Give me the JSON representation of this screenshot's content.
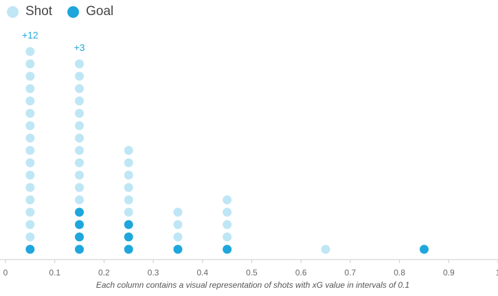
{
  "chart_data": {
    "type": "scatter",
    "description_style": "dot-stack histogram",
    "xlim": [
      0,
      1
    ],
    "x_ticks": [
      "0",
      "0.1",
      "0.2",
      "0.3",
      "0.4",
      "0.5",
      "0.6",
      "0.7",
      "0.8",
      "0.9",
      "1"
    ],
    "max_dots_shown": 17,
    "series": [
      {
        "name": "Shot",
        "color": "#bfe6f5"
      },
      {
        "name": "Goal",
        "color": "#1fa6dc"
      }
    ],
    "bins": [
      {
        "x": 0.05,
        "shots": 28,
        "goals": 1,
        "overflow_label": "+12"
      },
      {
        "x": 0.15,
        "shots": 16,
        "goals": 4,
        "overflow_label": "+3"
      },
      {
        "x": 0.25,
        "shots": 9,
        "goals": 3,
        "overflow_label": ""
      },
      {
        "x": 0.35,
        "shots": 4,
        "goals": 1,
        "overflow_label": ""
      },
      {
        "x": 0.45,
        "shots": 5,
        "goals": 1,
        "overflow_label": ""
      },
      {
        "x": 0.65,
        "shots": 1,
        "goals": 0,
        "overflow_label": ""
      },
      {
        "x": 0.85,
        "shots": 1,
        "goals": 1,
        "overflow_label": ""
      }
    ],
    "caption": "Each column contains a visual representation of shots with xG value in intervals of 0.1"
  }
}
